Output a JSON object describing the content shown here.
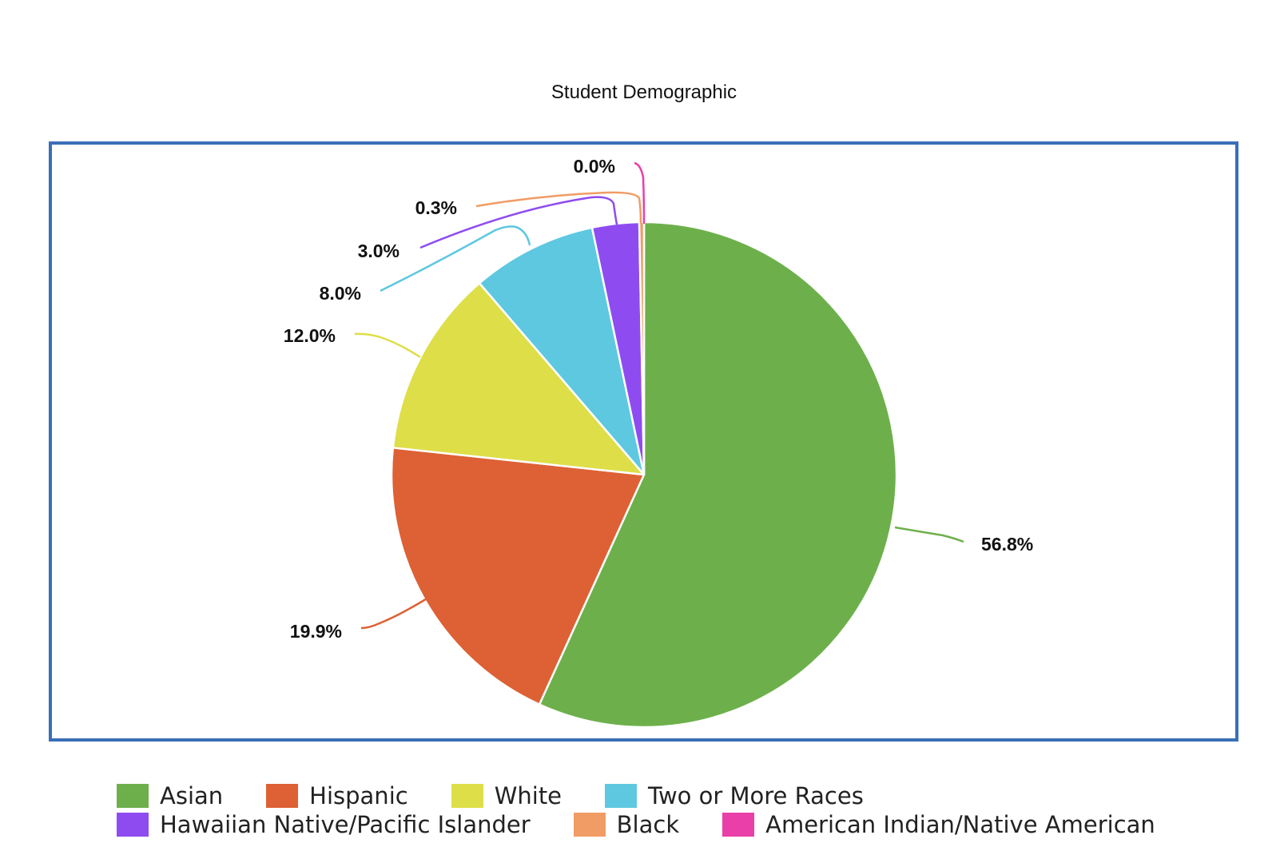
{
  "chart_data": {
    "type": "pie",
    "title": "Student Demographic",
    "slices": [
      {
        "name": "Asian",
        "value": 56.8,
        "label": "56.8%",
        "color": "#6db04b"
      },
      {
        "name": "Hispanic",
        "value": 19.9,
        "label": "19.9%",
        "color": "#dd6134"
      },
      {
        "name": "White",
        "value": 12.0,
        "label": "12.0%",
        "color": "#dede48"
      },
      {
        "name": "Two or More Races",
        "value": 8.0,
        "label": "8.0%",
        "color": "#5ec8e0"
      },
      {
        "name": "Hawaiian Native/Pacific Islander",
        "value": 3.0,
        "label": "3.0%",
        "color": "#8e4cf0"
      },
      {
        "name": "Black",
        "value": 0.3,
        "label": "0.3%",
        "color": "#f09c64"
      },
      {
        "name": "American Indian/Native American",
        "value": 0.0,
        "label": "0.0%",
        "color": "#ea3fa8"
      }
    ],
    "start_angle": "12 o'clock",
    "direction": "clockwise",
    "legend_position": "bottom",
    "legend_rows": [
      [
        "Asian",
        "Hispanic",
        "White",
        "Two or More Races"
      ],
      [
        "Hawaiian Native/Pacific Islander",
        "Black",
        "American Indian/Native American"
      ]
    ],
    "frame_color": "#3a6fb8"
  }
}
